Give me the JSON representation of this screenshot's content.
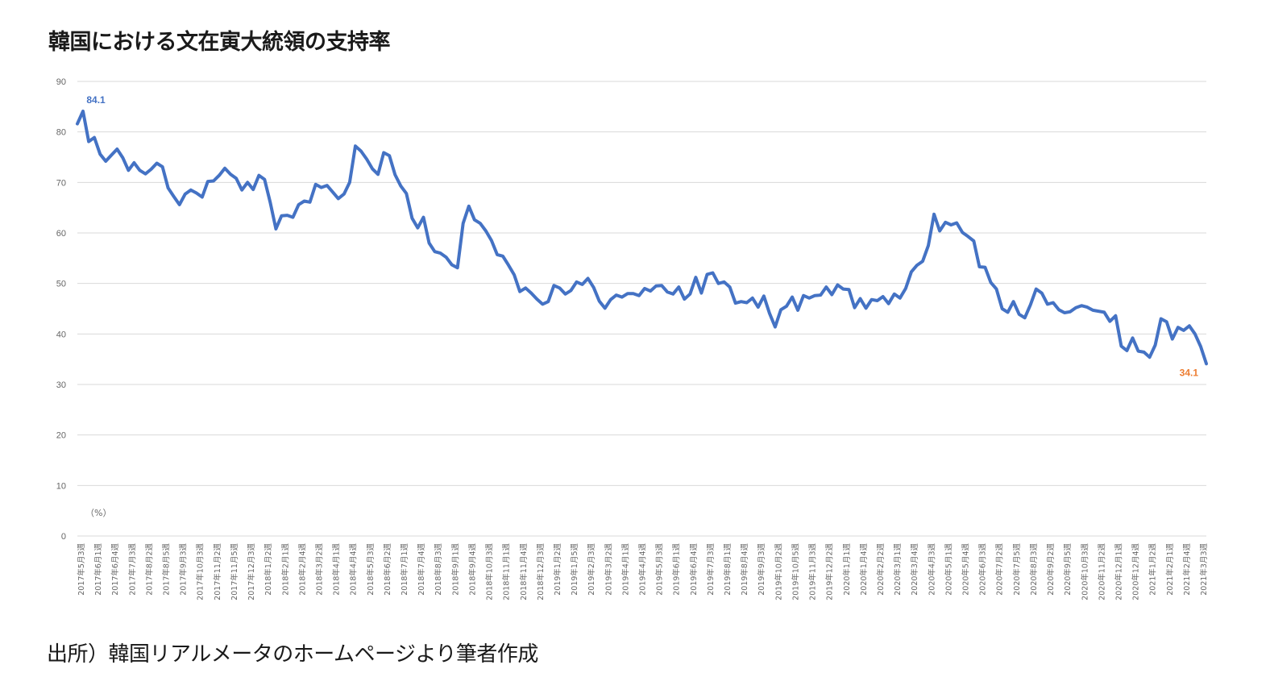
{
  "header": {
    "title": "韓国における文在寅大統領の支持率"
  },
  "footer": {
    "source": "出所）韓国リアルメータのホームページより筆者作成"
  },
  "colors": {
    "line": "#4472c4",
    "start_label": "#4472c4",
    "end_label": "#ed7d31",
    "grid": "#d9d9d9"
  },
  "chart_data": {
    "type": "line",
    "title": "",
    "unit_label": "（%）",
    "ylim": [
      0,
      90
    ],
    "yticks": [
      0,
      10,
      20,
      30,
      40,
      50,
      60,
      70,
      80,
      90
    ],
    "grid": true,
    "x_tick_labels": [
      "2017年5月3週",
      "2017年6月1週",
      "2017年6月4週",
      "2017年7月3週",
      "2017年8月2週",
      "2017年8月5週",
      "2017年9月3週",
      "2017年10月3週",
      "2017年11月2週",
      "2017年11月5週",
      "2017年12月3週",
      "2018年1月2週",
      "2018年2月1週",
      "2018年2月4週",
      "2018年3月2週",
      "2018年4月1週",
      "2018年4月4週",
      "2018年5月3週",
      "2018年6月2週",
      "2018年7月1週",
      "2018年7月4週",
      "2018年8月3週",
      "2018年9月1週",
      "2018年9月4週",
      "2018年10月3週",
      "2018年11月1週",
      "2018年11月4週",
      "2018年12月3週",
      "2019年1月2週",
      "2019年1月5週",
      "2019年2月3週",
      "2019年3月2週",
      "2019年4月1週",
      "2019年4月4週",
      "2019年5月3週",
      "2019年6月1週",
      "2019年6月4週",
      "2019年7月3週",
      "2019年8月1週",
      "2019年8月4週",
      "2019年9月3週",
      "2019年10月2週",
      "2019年10月5週",
      "2019年11月3週",
      "2019年12月2週",
      "2020年1月1週",
      "2020年1月4週",
      "2020年2月2週",
      "2020年3月1週",
      "2020年3月4週",
      "2020年4月3週",
      "2020年5月1週",
      "2020年5月4週",
      "2020年6月3週",
      "2020年7月2週",
      "2020年7月5週",
      "2020年8月3週",
      "2020年9月2週",
      "2020年9月5週",
      "2020年10月3週",
      "2020年11月2週",
      "2020年12月1週",
      "2020年12月4週",
      "2021年1月2週",
      "2021年2月1週",
      "2021年2月4週",
      "2021年3月3週"
    ],
    "series": [
      {
        "name": "",
        "values": [
          81.6,
          84.1,
          78.1,
          78.9,
          75.6,
          74.2,
          75.4,
          76.6,
          74.9,
          72.4,
          73.9,
          72.4,
          71.7,
          72.6,
          73.8,
          73.1,
          68.9,
          67.2,
          65.6,
          67.7,
          68.5,
          67.9,
          67.1,
          70.2,
          70.3,
          71.4,
          72.8,
          71.6,
          70.8,
          68.5,
          70.0,
          68.6,
          71.4,
          70.6,
          66.0,
          60.8,
          63.4,
          63.5,
          63.1,
          65.6,
          66.3,
          66.1,
          69.6,
          69.0,
          69.4,
          68.1,
          66.8,
          67.7,
          70.0,
          77.2,
          76.2,
          74.6,
          72.7,
          71.6,
          75.9,
          75.3,
          71.5,
          69.3,
          67.8,
          62.9,
          61.0,
          63.1,
          58.0,
          56.3,
          56.0,
          55.2,
          53.7,
          53.1,
          61.9,
          65.3,
          62.6,
          61.9,
          60.4,
          58.5,
          55.7,
          55.4,
          53.6,
          51.7,
          48.4,
          49.1,
          48.1,
          46.9,
          45.9,
          46.4,
          49.6,
          49.1,
          47.9,
          48.6,
          50.3,
          49.8,
          51.0,
          49.2,
          46.5,
          45.1,
          46.8,
          47.7,
          47.3,
          48.0,
          48.0,
          47.6,
          49.0,
          48.5,
          49.5,
          49.6,
          48.3,
          47.9,
          49.3,
          46.9,
          47.9,
          51.2,
          48.1,
          51.8,
          52.1,
          50.0,
          50.3,
          49.3,
          46.1,
          46.4,
          46.2,
          47.1,
          45.3,
          47.5,
          44.1,
          41.4,
          44.8,
          45.5,
          47.3,
          44.7,
          47.6,
          47.1,
          47.6,
          47.7,
          49.3,
          47.8,
          49.7,
          48.9,
          48.8,
          45.2,
          47.0,
          45.1,
          46.8,
          46.6,
          47.4,
          46.0,
          47.9,
          47.1,
          49.0,
          52.3,
          53.6,
          54.4,
          57.5,
          63.7,
          60.4,
          62.1,
          61.6,
          62.0,
          60.1,
          59.3,
          58.4,
          53.3,
          53.2,
          50.2,
          48.9,
          45.0,
          44.3,
          46.4,
          43.9,
          43.2,
          45.8,
          48.9,
          48.1,
          45.9,
          46.2,
          44.8,
          44.2,
          44.4,
          45.2,
          45.6,
          45.3,
          44.7,
          44.5,
          44.3,
          42.5,
          43.6,
          37.6,
          36.7,
          39.2,
          36.6,
          36.4,
          35.4,
          37.8,
          43.0,
          42.4,
          39.0,
          41.3,
          40.7,
          41.6,
          40.0,
          37.5,
          34.1
        ]
      }
    ],
    "annotations": [
      {
        "label": "84.1",
        "point": "first-max"
      },
      {
        "label": "34.1",
        "point": "last"
      }
    ]
  }
}
